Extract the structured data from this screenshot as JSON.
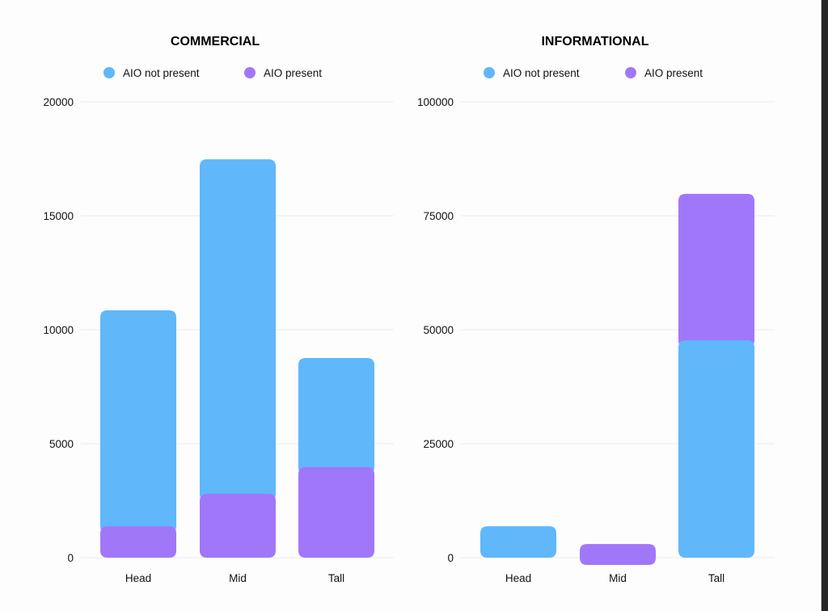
{
  "colors": {
    "not_present": "#60b7fa",
    "present": "#a177f9",
    "grid": "#ececec"
  },
  "chart_data": [
    {
      "type": "bar",
      "stacked": true,
      "title": "COMMERCIAL",
      "categories": [
        "Head",
        "Mid",
        "Tall"
      ],
      "ylim": [
        0,
        20000
      ],
      "yticks": [
        "0",
        "5000",
        "10000",
        "15000",
        "20000"
      ],
      "ytick_values": [
        0,
        5000,
        10000,
        15000,
        20000
      ],
      "grid": true,
      "legend_position": "top-center",
      "stack_order": [
        "AIO present",
        "AIO not present"
      ],
      "series": [
        {
          "name": "AIO not present",
          "color_key": "not_present",
          "values": [
            9470,
            14680,
            4790
          ]
        },
        {
          "name": "AIO present",
          "color_key": "present",
          "values": [
            1380,
            2800,
            3970
          ]
        }
      ]
    },
    {
      "type": "bar",
      "stacked": true,
      "title": "INFORMATIONAL",
      "categories": [
        "Head",
        "Mid",
        "Tall"
      ],
      "ylim": [
        0,
        100000
      ],
      "yticks": [
        "0",
        "25000",
        "50000",
        "75000",
        "100000"
      ],
      "ytick_values": [
        0,
        25000,
        50000,
        75000,
        100000
      ],
      "grid": true,
      "legend_position": "top-center",
      "stack_order": [
        "AIO not present",
        "AIO present"
      ],
      "series": [
        {
          "name": "AIO not present",
          "color_key": "not_present",
          "values": [
            6900,
            0,
            47700
          ]
        },
        {
          "name": "AIO present",
          "color_key": "present",
          "values": [
            0,
            3000,
            32100
          ]
        }
      ]
    }
  ]
}
